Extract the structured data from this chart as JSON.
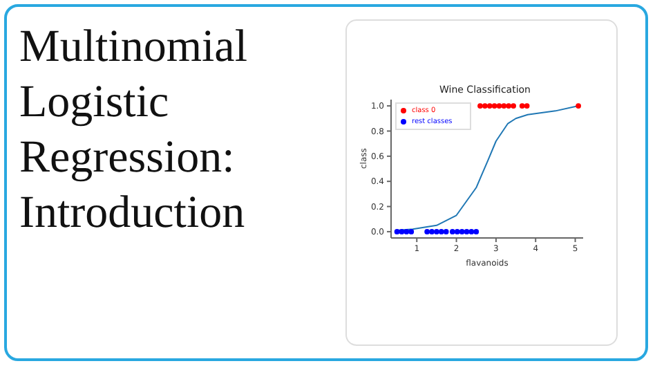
{
  "chart_data": {
    "type": "scatter",
    "title": "Wine Classification",
    "xlabel": "flavanoids",
    "ylabel": "class",
    "annotations": [
      "Multinomial Logistic Regression: Introduction"
    ],
    "series": [
      {
        "name": "class 0",
        "color": "#ff0000",
        "marker": "circle",
        "x": [
          2.6,
          2.72,
          2.84,
          2.96,
          3.08,
          3.2,
          3.32,
          3.44,
          3.66,
          3.78,
          5.08
        ],
        "values": [
          1,
          1,
          1,
          1,
          1,
          1,
          1,
          1,
          1,
          1,
          1
        ]
      },
      {
        "name": "rest classes",
        "color": "#0000ff",
        "marker": "circle",
        "x": [
          0.5,
          0.62,
          0.74,
          0.86,
          1.26,
          1.38,
          1.5,
          1.62,
          1.74,
          1.9,
          2.02,
          2.14,
          2.26,
          2.38,
          2.5
        ],
        "values": [
          0,
          0,
          0,
          0,
          0,
          0,
          0,
          0,
          0,
          0,
          0,
          0,
          0,
          0,
          0
        ]
      },
      {
        "color": "#1f77b4",
        "type": "line",
        "x": [
          0.5,
          0.9,
          1.5,
          2.0,
          2.5,
          2.8,
          3.0,
          3.3,
          3.5,
          3.8,
          4.5,
          5.08
        ],
        "values": [
          0.01,
          0.02,
          0.05,
          0.13,
          0.35,
          0.57,
          0.72,
          0.86,
          0.9,
          0.93,
          0.96,
          1.0
        ]
      }
    ],
    "xlim": [
      0.35,
      5.2
    ],
    "xticks": [
      1,
      2,
      3,
      4,
      5
    ],
    "ylim": [
      -0.05,
      1.05
    ],
    "yticks": [
      {
        "value": 0,
        "label": "0.0"
      },
      {
        "value": 0.2,
        "label": "0.2"
      },
      {
        "value": 0.4,
        "label": "0.4"
      },
      {
        "value": 0.6,
        "label": "0.6"
      },
      {
        "value": 0.8,
        "label": "0.8"
      },
      {
        "value": 1,
        "label": "1.0"
      }
    ],
    "legend": "top left"
  }
}
